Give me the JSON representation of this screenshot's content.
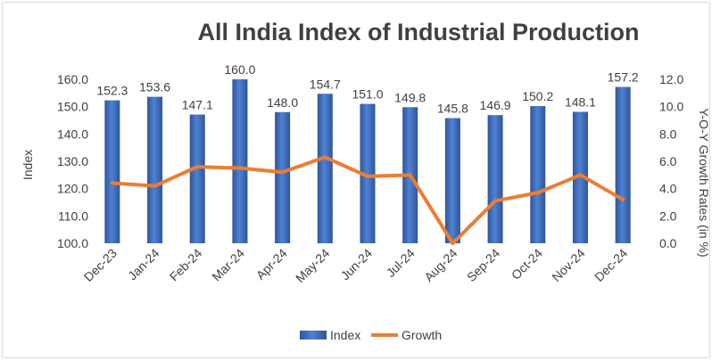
{
  "chart_data": {
    "type": "bar",
    "title": "All India Index of Industrial Production",
    "ylabel": "Index",
    "y2label": "Y-O-Y Growth Rates (in %)",
    "categories": [
      "Dec-23",
      "Jan-24",
      "Feb-24",
      "Mar-24",
      "Apr-24",
      "May-24",
      "Jun-24",
      "Jul-24",
      "Aug-24",
      "Sep-24",
      "Oct-24",
      "Nov-24",
      "Dec-24"
    ],
    "series": [
      {
        "name": "Index",
        "type": "bar",
        "axis": "left",
        "color": "#4472c4",
        "values": [
          152.3,
          153.6,
          147.1,
          160.0,
          148.0,
          154.7,
          151.0,
          149.8,
          145.8,
          146.9,
          150.2,
          148.1,
          157.2
        ],
        "labels": [
          "152.3",
          "153.6",
          "147.1",
          "160.0",
          "148.0",
          "154.7",
          "151.0",
          "149.8",
          "145.8",
          "146.9",
          "150.2",
          "148.1",
          "157.2"
        ]
      },
      {
        "name": "Growth",
        "type": "line",
        "axis": "right",
        "color": "#ed7d31",
        "values": [
          4.4,
          4.2,
          5.6,
          5.5,
          5.2,
          6.3,
          4.9,
          5.0,
          0.0,
          3.1,
          3.7,
          5.0,
          3.2
        ]
      }
    ],
    "ylim": [
      100,
      160
    ],
    "y2lim": [
      0,
      12
    ],
    "yticks": [
      "100.0",
      "110.0",
      "120.0",
      "130.0",
      "140.0",
      "150.0",
      "160.0"
    ],
    "y2ticks": [
      "0.0",
      "2.0",
      "4.0",
      "6.0",
      "8.0",
      "10.0",
      "12.0"
    ],
    "grid": false,
    "legend_position": "bottom"
  }
}
